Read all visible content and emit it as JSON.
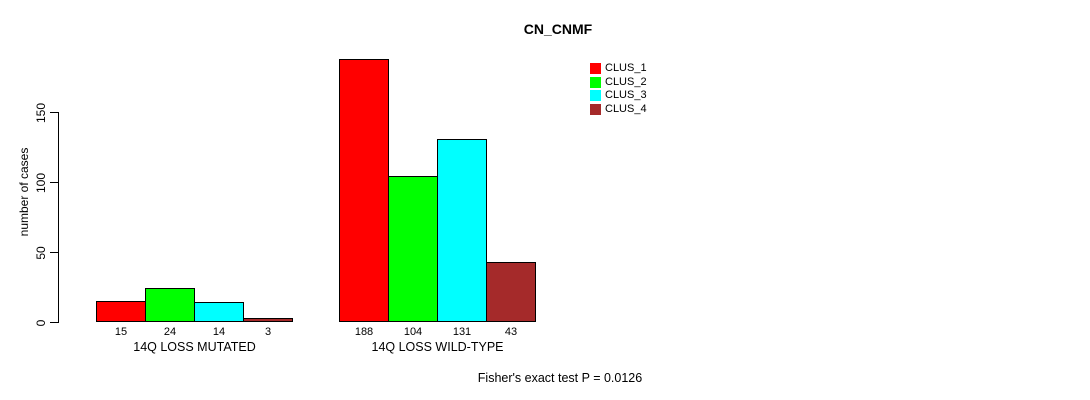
{
  "chart_data": {
    "type": "bar",
    "title": "CN_CNMF",
    "ylabel": "number of cases",
    "xlabel": "",
    "categories": [
      "14Q LOSS MUTATED",
      "14Q LOSS WILD-TYPE"
    ],
    "series": [
      {
        "name": "CLUS_1",
        "color": "#ff0000",
        "values": [
          15,
          188
        ]
      },
      {
        "name": "CLUS_2",
        "color": "#00ff00",
        "values": [
          24,
          104
        ]
      },
      {
        "name": "CLUS_3",
        "color": "#00ffff",
        "values": [
          14,
          131
        ]
      },
      {
        "name": "CLUS_4",
        "color": "#a52a2a",
        "values": [
          3,
          43
        ]
      }
    ],
    "bar_value_labels": [
      [
        "15",
        "24",
        "14",
        "3"
      ],
      [
        "188",
        "104",
        "131",
        "43"
      ]
    ],
    "yticks": [
      0,
      50,
      100,
      150
    ],
    "ylim": [
      0,
      195
    ],
    "grid": false,
    "legend_position": "top-right",
    "legend_entries": [
      "CLUS_1",
      "CLUS_2",
      "CLUS_3",
      "CLUS_4"
    ],
    "annotation": "Fisher's exact test P = 0.0126"
  },
  "colors": {
    "background": "#ffffff",
    "axis": "#000000",
    "text": "#000000",
    "bar_border": "#000000"
  }
}
